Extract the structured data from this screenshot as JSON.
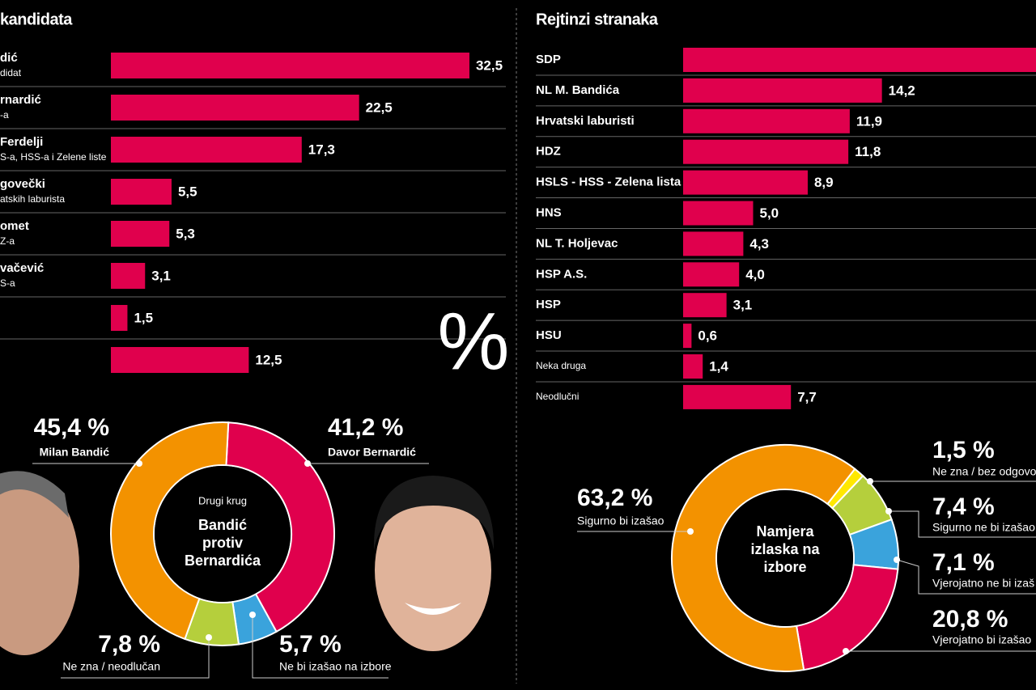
{
  "chart_data": [
    {
      "type": "bar",
      "title": "kandidata",
      "categories": [
        "dić",
        "rnardić",
        "Ferdelji",
        "govečki",
        "omet",
        "vačević",
        null,
        null
      ],
      "sublabels": [
        "didat",
        "-a",
        "S-a, HSS-a i Zelene liste",
        "atskih laburista",
        "Z-a",
        "S-a",
        null,
        null
      ],
      "values": [
        32.5,
        22.5,
        17.3,
        5.5,
        5.3,
        3.1,
        1.5,
        12.5
      ],
      "value_labels": [
        "32,5",
        "22,5",
        "17,3",
        "5,5",
        "5,3",
        "3,1",
        "1,5",
        "12,5"
      ],
      "color": "#e0004d",
      "unit_symbol": "%"
    },
    {
      "type": "bar",
      "title": "Rejtinzi stranaka",
      "categories": [
        "SDP",
        "NL M. Bandića",
        "Hrvatski laburisti",
        "HDZ",
        "HSLS - HSS - Zelena lista",
        "HNS",
        "NL T. Holjevac",
        "HSP A.S.",
        "HSP",
        "HSU",
        "Neka druga",
        "Neodlučni"
      ],
      "values": [
        26,
        14.2,
        11.9,
        11.8,
        8.9,
        5.0,
        4.3,
        4.0,
        3.1,
        0.6,
        1.4,
        7.7
      ],
      "value_labels": [
        null,
        "14,2",
        "11,9",
        "11,8",
        "8,9",
        "5,0",
        "4,3",
        "4,0",
        "3,1",
        "0,6",
        "1,4",
        "7,7"
      ],
      "color": "#e0004d"
    },
    {
      "type": "donut",
      "title": "Drugi krug",
      "subtitle_lines": [
        "Bandić",
        "protiv",
        "Bernardića"
      ],
      "categories": [
        "Davor Bernardić",
        "Ne bi izašao na izbore",
        "Ne zna / neodlučan",
        "Milan Bandić"
      ],
      "values": [
        41.2,
        5.7,
        7.8,
        45.4
      ],
      "value_labels": [
        "41,2 %",
        "5,7 %",
        "7,8 %",
        "45,4 %"
      ],
      "colors": [
        "#e0004d",
        "#3aa3dc",
        "#b5cf3c",
        "#f39200"
      ]
    },
    {
      "type": "donut",
      "title_lines": [
        "Namjera",
        "izlaska na",
        "izbore"
      ],
      "categories": [
        "Ne zna / bez odgovo",
        "Sigurno ne bi izašao",
        "Vjerojatno ne bi izaš",
        "Vjerojatno bi izašao",
        "Sigurno bi izašao"
      ],
      "values": [
        1.5,
        7.4,
        7.1,
        20.8,
        63.2
      ],
      "value_labels": [
        "1,5 %",
        "7,4 %",
        "7,1 %",
        "20,8 %",
        "63,2 %"
      ],
      "colors": [
        "#ffe800",
        "#b5cf3c",
        "#3aa3dc",
        "#e0004d",
        "#f39200"
      ]
    }
  ]
}
